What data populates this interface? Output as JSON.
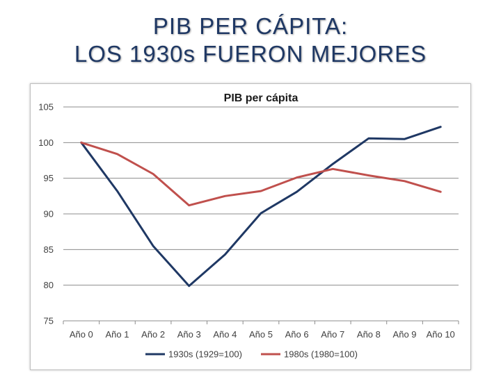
{
  "slide": {
    "title_line1": "PIB PER CÁPITA:",
    "title_line2": "LOS 1930s FUERON MEJORES"
  },
  "colors": {
    "title": "#1f3864",
    "series_1930s": "#1f3864",
    "series_1980s": "#c0504d",
    "grid": "#8c8c8c"
  },
  "chart_data": {
    "type": "line",
    "title": "PIB per cápita",
    "xlabel": "",
    "ylabel": "",
    "ylim": [
      75,
      105
    ],
    "yticks": [
      75,
      80,
      85,
      90,
      95,
      100,
      105
    ],
    "grid": true,
    "legend_position": "bottom",
    "categories": [
      "Año 0",
      "Año 1",
      "Año 2",
      "Año 3",
      "Año 4",
      "Año 5",
      "Año 6",
      "Año 7",
      "Año 8",
      "Año 9",
      "Año 10"
    ],
    "series": [
      {
        "name": "1930s (1929=100)",
        "color": "#1f3864",
        "values": [
          100,
          93.2,
          85.5,
          79.9,
          84.3,
          90.1,
          93.1,
          97.0,
          100.6,
          100.5,
          102.2
        ]
      },
      {
        "name": "1980s (1980=100)",
        "color": "#c0504d",
        "values": [
          100,
          98.4,
          95.6,
          91.2,
          92.5,
          93.2,
          95.1,
          96.3,
          95.4,
          94.6,
          93.1
        ]
      }
    ]
  }
}
